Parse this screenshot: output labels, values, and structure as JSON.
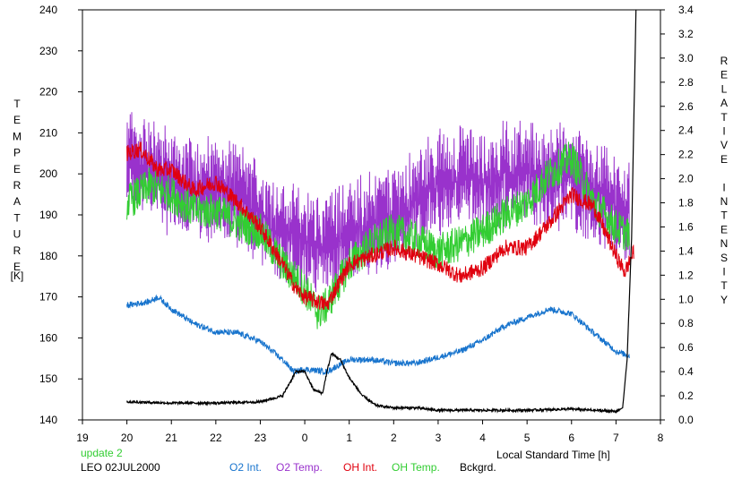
{
  "chart_data": {
    "type": "line",
    "xlabel": "Local Standard Time [h]",
    "ylabel_left": "TEMPERATURE",
    "ylabel_left_unit": "[K]",
    "ylabel_right": "RELATIVE INTENSITY",
    "xlim": [
      19,
      8
    ],
    "x_ticks": [
      "19",
      "20",
      "21",
      "22",
      "23",
      "0",
      "1",
      "2",
      "3",
      "4",
      "5",
      "6",
      "7",
      "8"
    ],
    "ylim_left": [
      140,
      240
    ],
    "y_ticks_left": [
      "140",
      "150",
      "160",
      "170",
      "180",
      "190",
      "200",
      "210",
      "220",
      "230",
      "240"
    ],
    "ylim_right": [
      0.0,
      3.4
    ],
    "y_ticks_right": [
      "0.0",
      "0.2",
      "0.4",
      "0.6",
      "0.8",
      "1.0",
      "1.2",
      "1.4",
      "1.6",
      "1.8",
      "2.0",
      "2.2",
      "2.4",
      "2.6",
      "2.8",
      "3.0",
      "3.2",
      "3.4"
    ],
    "grid": false,
    "legend_position": "bottom",
    "update_label": "update 2",
    "station_label": "LEO 02JUL2000",
    "series": [
      {
        "name": "O2 Int.",
        "axis": "right",
        "color": "#1874cd",
        "x": [
          20.0,
          20.5,
          20.7,
          21.0,
          21.5,
          22.0,
          22.5,
          23.0,
          23.5,
          23.75,
          24.0,
          24.5,
          25.0,
          25.5,
          26.0,
          26.5,
          27.0,
          27.5,
          28.0,
          28.5,
          29.0,
          29.5,
          30.0,
          30.5,
          31.0,
          31.3
        ],
        "y": [
          0.95,
          0.98,
          1.02,
          0.92,
          0.8,
          0.73,
          0.72,
          0.65,
          0.5,
          0.4,
          0.42,
          0.4,
          0.5,
          0.5,
          0.47,
          0.47,
          0.52,
          0.57,
          0.66,
          0.78,
          0.85,
          0.92,
          0.88,
          0.72,
          0.57,
          0.53
        ]
      },
      {
        "name": "O2 Temp.",
        "axis": "left",
        "color": "#9932cc",
        "x": [
          20.0,
          20.5,
          21.0,
          21.5,
          22.0,
          22.5,
          23.0,
          23.5,
          24.0,
          24.5,
          25.0,
          25.5,
          26.0,
          26.5,
          27.0,
          27.5,
          28.0,
          28.5,
          29.0,
          29.5,
          30.0,
          30.5,
          31.0,
          31.3
        ],
        "y": [
          203,
          201,
          198,
          197,
          196,
          195,
          190,
          186,
          183,
          183,
          186,
          188,
          189,
          193,
          198,
          199,
          198,
          200,
          200,
          199,
          199,
          195,
          192,
          190
        ],
        "amplitude": 12
      },
      {
        "name": "OH Int.",
        "axis": "left",
        "color": "#e0000e",
        "x": [
          20.0,
          20.3,
          20.7,
          21.0,
          21.5,
          22.0,
          22.5,
          23.0,
          23.5,
          23.8,
          24.0,
          24.5,
          25.0,
          25.5,
          26.0,
          26.5,
          27.0,
          27.5,
          28.0,
          28.5,
          29.0,
          29.5,
          30.0,
          30.5,
          31.0,
          31.2,
          31.4
        ],
        "y": [
          205,
          206,
          201,
          201,
          196,
          198,
          193,
          187,
          178,
          172,
          170,
          168,
          178,
          180,
          182,
          180,
          178,
          175,
          177,
          182,
          182,
          188,
          195,
          192,
          180,
          176,
          181
        ]
      },
      {
        "name": "OH Temp.",
        "axis": "left",
        "color": "#32cd32",
        "x": [
          20.0,
          20.5,
          21.0,
          21.5,
          22.0,
          22.5,
          23.0,
          23.5,
          24.0,
          24.3,
          24.5,
          25.0,
          25.5,
          26.0,
          26.5,
          27.0,
          27.5,
          28.0,
          28.5,
          29.0,
          29.5,
          30.0,
          30.5,
          31.0,
          31.3
        ],
        "y": [
          193,
          197,
          195,
          191,
          191,
          188,
          186,
          178,
          172,
          166,
          168,
          178,
          183,
          186,
          184,
          181,
          183,
          186,
          190,
          193,
          200,
          204,
          193,
          187,
          185
        ]
      },
      {
        "name": "Bckgrd.",
        "axis": "right",
        "color": "#000000",
        "x": [
          20.0,
          21.0,
          22.0,
          23.0,
          23.5,
          23.8,
          24.0,
          24.2,
          24.4,
          24.5,
          24.6,
          24.8,
          25.0,
          25.3,
          25.6,
          26.0,
          26.5,
          27.0,
          27.5,
          28.0,
          28.5,
          29.0,
          30.0,
          31.0,
          31.15,
          31.25,
          31.35,
          31.45
        ],
        "y": [
          0.15,
          0.14,
          0.14,
          0.15,
          0.2,
          0.4,
          0.4,
          0.25,
          0.22,
          0.4,
          0.55,
          0.5,
          0.35,
          0.2,
          0.12,
          0.1,
          0.1,
          0.08,
          0.08,
          0.08,
          0.08,
          0.08,
          0.09,
          0.07,
          0.1,
          0.5,
          1.5,
          3.4
        ]
      }
    ]
  }
}
